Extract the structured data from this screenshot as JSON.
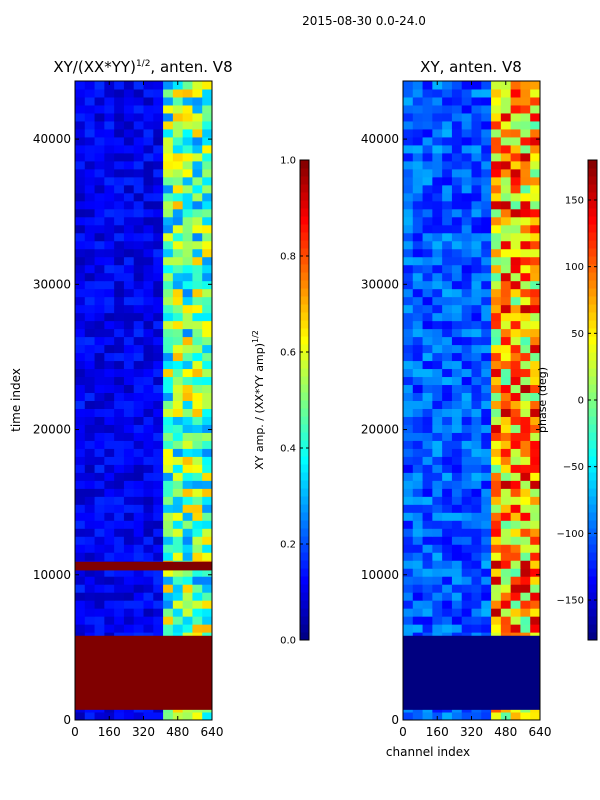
{
  "figure_title": "2015-08-30 0.0-24.0",
  "chart_data": [
    {
      "type": "heatmap",
      "title_main": "XY/(XX*YY)",
      "title_exp": "1/2",
      "title_suffix": ", anten. V8",
      "xlabel": "",
      "ylabel": "time index",
      "xlim": [
        0,
        640
      ],
      "ylim": [
        0,
        44000
      ],
      "xticks": [
        0,
        160,
        320,
        480,
        640
      ],
      "yticks": [
        0,
        10000,
        20000,
        30000,
        40000
      ],
      "colorbar": {
        "label_main": "XY amp. / (XX*YY amp)",
        "label_exp": "1/2",
        "range": [
          0.0,
          1.0
        ],
        "ticks": [
          "0.0",
          "0.2",
          "0.4",
          "0.6",
          "0.8",
          "1.0"
        ],
        "tick_values": [
          0.0,
          0.2,
          0.4,
          0.6,
          0.8,
          1.0
        ],
        "colormap": "jet"
      },
      "regions": [
        {
          "note": "saturated (value 1.0) block",
          "t_start": 700,
          "t_end": 5800,
          "value": 1.0
        },
        {
          "note": "saturated band",
          "t_start": 10300,
          "t_end": 10900,
          "value": 1.0
        }
      ]
    },
    {
      "type": "heatmap",
      "title_main": "XY, anten. V8",
      "xlabel": "channel index",
      "ylabel": "",
      "xlim": [
        0,
        640
      ],
      "ylim": [
        0,
        44000
      ],
      "xticks": [
        0,
        160,
        320,
        480,
        640
      ],
      "yticks": [
        0,
        10000,
        20000,
        30000,
        40000
      ],
      "colorbar": {
        "label_main": "phase (deg)",
        "range": [
          -180,
          180
        ],
        "ticks": [
          "−150",
          "−100",
          "−50",
          "0",
          "50",
          "100",
          "150"
        ],
        "tick_values": [
          -150,
          -100,
          -50,
          0,
          50,
          100,
          150
        ],
        "colormap": "jet"
      },
      "regions": [
        {
          "note": "low-phase block (about -180 deg)",
          "t_start": 700,
          "t_end": 5800,
          "value": -180
        }
      ]
    }
  ]
}
